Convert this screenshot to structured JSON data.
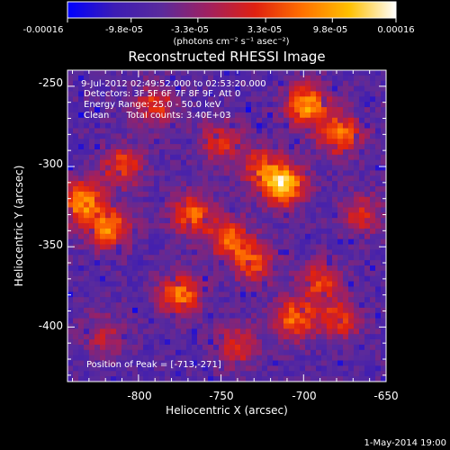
{
  "colorbar": {
    "tick_labels": [
      "-0.00016",
      "-9.8e-05",
      "-3.3e-05",
      "3.3e-05",
      "9.8e-05",
      "0.00016"
    ],
    "units": "(photons cm⁻² s⁻¹ asec⁻²)",
    "range": [
      -0.00016,
      0.00016
    ],
    "colors": [
      "#0000ff",
      "#3c1cb4",
      "#5a2a9c",
      "#a02060",
      "#e02010",
      "#ff7000",
      "#ffc000",
      "#ffffff"
    ]
  },
  "chart_data": {
    "type": "heatmap",
    "title": "Reconstructed RHESSI Image",
    "xlabel": "Heliocentric X (arcsec)",
    "ylabel": "Heliocentric Y (arcsec)",
    "xlim": [
      -843,
      -650
    ],
    "ylim": [
      -434,
      -240
    ],
    "x_ticks": [
      -800,
      -750,
      -700,
      -650
    ],
    "y_ticks": [
      -250,
      -300,
      -350,
      -400
    ],
    "annotations": [
      "9-Jul-2012 02:49:52.000 to 02:53:20.000",
      "Detectors: 3F 5F 6F 7F 8F 9F, Att 0",
      "Energy Range: 25.0 - 50.0 keV",
      "Clean      Total counts: 3.40E+03"
    ],
    "peak_label": "Position of Peak = [-713,-271]",
    "peak": [
      -713,
      -271
    ],
    "hotspots": [
      {
        "x": -712,
        "y": -312,
        "v": 1.0
      },
      {
        "x": -698,
        "y": -262,
        "v": 0.85
      },
      {
        "x": -678,
        "y": -280,
        "v": 0.75
      },
      {
        "x": -835,
        "y": -322,
        "v": 0.85
      },
      {
        "x": -818,
        "y": -338,
        "v": 0.8
      },
      {
        "x": -810,
        "y": -300,
        "v": 0.6
      },
      {
        "x": -768,
        "y": -330,
        "v": 0.7
      },
      {
        "x": -775,
        "y": -380,
        "v": 0.75
      },
      {
        "x": -745,
        "y": -345,
        "v": 0.65
      },
      {
        "x": -730,
        "y": -360,
        "v": 0.6
      },
      {
        "x": -705,
        "y": -395,
        "v": 0.7
      },
      {
        "x": -690,
        "y": -372,
        "v": 0.55
      },
      {
        "x": -678,
        "y": -395,
        "v": 0.55
      },
      {
        "x": -790,
        "y": -262,
        "v": 0.55
      },
      {
        "x": -750,
        "y": -285,
        "v": 0.5
      },
      {
        "x": -740,
        "y": -412,
        "v": 0.5
      },
      {
        "x": -820,
        "y": -405,
        "v": 0.35
      },
      {
        "x": -665,
        "y": -330,
        "v": 0.45
      },
      {
        "x": -725,
        "y": -300,
        "v": 0.55
      }
    ]
  },
  "footer": {
    "date": "1-May-2014 19:00"
  }
}
